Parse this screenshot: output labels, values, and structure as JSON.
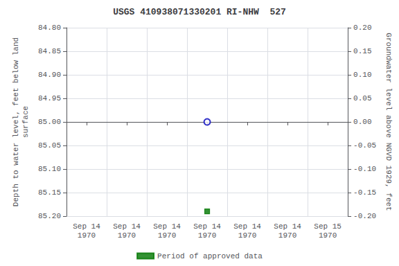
{
  "chart_data": {
    "type": "scatter",
    "title": "USGS 410938071330201 RI-NHW  527",
    "categories": [
      "Sep 14\n1970",
      "Sep 14\n1970",
      "Sep 14\n1970",
      "Sep 14\n1970",
      "Sep 14\n1970",
      "Sep 14\n1970",
      "Sep 15\n1970"
    ],
    "ylabel": "Depth to water level, feet below land\nsurface",
    "y2label": "Groundwater level above NGVD 1929, feet",
    "ylim": [
      85.2,
      84.8
    ],
    "yticks": [
      {
        "value": 84.8,
        "label": "84.80"
      },
      {
        "value": 84.85,
        "label": "84.85"
      },
      {
        "value": 84.9,
        "label": "84.90"
      },
      {
        "value": 84.95,
        "label": "84.95"
      },
      {
        "value": 85.0,
        "label": "85.00"
      },
      {
        "value": 85.05,
        "label": "85.05"
      },
      {
        "value": 85.1,
        "label": "85.10"
      },
      {
        "value": 85.15,
        "label": "85.15"
      },
      {
        "value": 85.2,
        "label": "85.20"
      }
    ],
    "y2lim": [
      -0.2,
      0.2
    ],
    "y2ticks": [
      {
        "value": 0.2,
        "label": "0.20"
      },
      {
        "value": 0.15,
        "label": "0.15"
      },
      {
        "value": 0.1,
        "label": "0.10"
      },
      {
        "value": 0.05,
        "label": "0.05"
      },
      {
        "value": 0,
        "label": "0.00"
      },
      {
        "value": -0.05,
        "label": "-0.05"
      },
      {
        "value": -0.1,
        "label": "-0.10"
      },
      {
        "value": -0.15,
        "label": "-0.15"
      },
      {
        "value": -0.2,
        "label": "-0.20"
      }
    ],
    "grid": true,
    "legend": "bottom",
    "series": [
      {
        "color": "#0000bb",
        "marker": "circle_open",
        "values": [
          null,
          null,
          null,
          85.0,
          null,
          null,
          null
        ]
      },
      {
        "name": "Period of approved data",
        "color": "#007700",
        "marker": "square",
        "values": [
          null,
          null,
          null,
          85.19,
          null,
          null,
          null
        ]
      }
    ]
  }
}
